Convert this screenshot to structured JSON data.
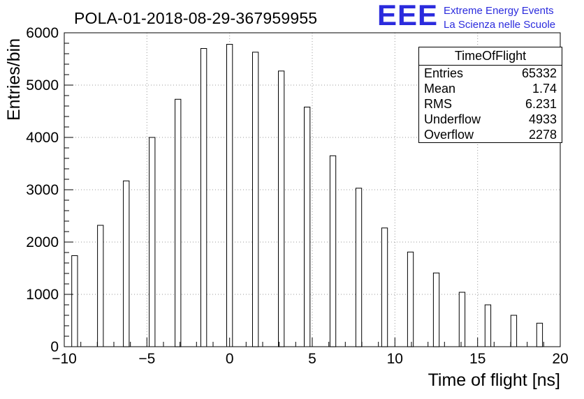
{
  "title": "POLA-01-2018-08-29-367959955",
  "logo": {
    "acronym": "EEE",
    "line1": "Extreme Energy Events",
    "line2": "La Scienza nelle Scuole",
    "color": "#2b2bdd"
  },
  "stats": {
    "header": "TimeOfFlight",
    "rows": [
      {
        "label": "Entries",
        "value": "65332"
      },
      {
        "label": "Mean",
        "value": "1.74"
      },
      {
        "label": "RMS",
        "value": "6.231"
      },
      {
        "label": "Underflow",
        "value": "4933"
      },
      {
        "label": "Overflow",
        "value": "2278"
      }
    ]
  },
  "chart_data": {
    "type": "bar",
    "title": "POLA-01-2018-08-29-367959955",
    "xlabel": "Time of flight [ns]",
    "ylabel": "Entries/bin",
    "xlim": [
      -10,
      20
    ],
    "ylim": [
      0,
      6000
    ],
    "grid": true,
    "legend_position": "none",
    "x_major_ticks": [
      -10,
      -5,
      0,
      5,
      10,
      15,
      20
    ],
    "x_tick_labels": [
      "−10",
      "−5",
      "0",
      "5",
      "10",
      "15",
      "20"
    ],
    "x_minor_step": 1,
    "y_major_ticks": [
      0,
      1000,
      2000,
      3000,
      4000,
      5000,
      6000
    ],
    "y_tick_labels": [
      "0",
      "1000",
      "2000",
      "3000",
      "4000",
      "5000",
      "6000"
    ],
    "y_minor_step": 200,
    "bar_width": 0.35,
    "bar_fill": "#ffffff",
    "bar_stroke": "#000000",
    "x": [
      -9.375,
      -7.8125,
      -6.25,
      -4.6875,
      -3.125,
      -1.5625,
      0,
      1.5625,
      3.125,
      4.6875,
      6.25,
      7.8125,
      9.375,
      10.9375,
      12.5,
      14.0625,
      15.625,
      17.1875,
      18.75
    ],
    "values": [
      1740,
      2320,
      3170,
      4000,
      4730,
      5700,
      5780,
      5630,
      5270,
      4580,
      3650,
      3030,
      2270,
      1810,
      1410,
      1040,
      800,
      600,
      450
    ]
  }
}
